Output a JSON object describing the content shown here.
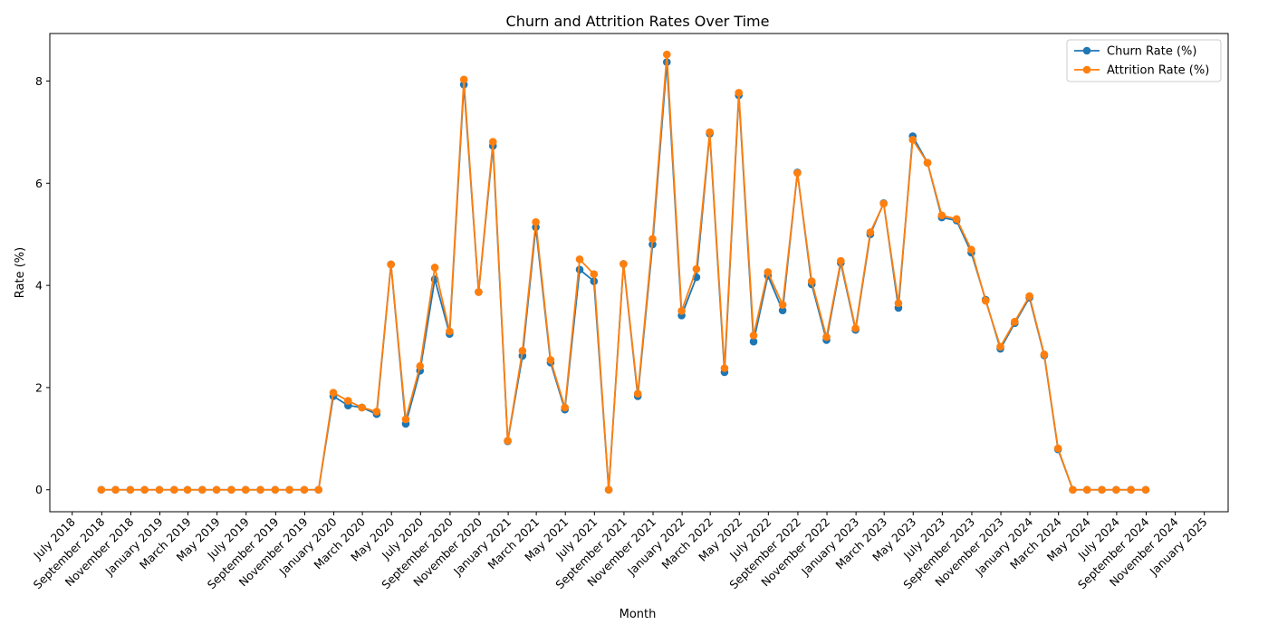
{
  "chart_data": {
    "type": "line",
    "title": "Churn and Attrition Rates Over Time",
    "xlabel": "Month",
    "ylabel": "Rate (%)",
    "legend_position": "top-right",
    "grid": false,
    "xlim": [
      "2018-05-15",
      "2025-02-20"
    ],
    "ylim": [
      -0.43,
      8.93
    ],
    "x_ticks": [
      "2018-07-01",
      "2018-09-01",
      "2018-11-01",
      "2019-01-01",
      "2019-03-01",
      "2019-05-01",
      "2019-07-01",
      "2019-09-01",
      "2019-11-01",
      "2020-01-01",
      "2020-03-01",
      "2020-05-01",
      "2020-07-01",
      "2020-09-01",
      "2020-11-01",
      "2021-01-01",
      "2021-03-01",
      "2021-05-01",
      "2021-07-01",
      "2021-09-01",
      "2021-11-01",
      "2022-01-01",
      "2022-03-01",
      "2022-05-01",
      "2022-07-01",
      "2022-09-01",
      "2022-11-01",
      "2023-01-01",
      "2023-03-01",
      "2023-05-01",
      "2023-07-01",
      "2023-09-01",
      "2023-11-01",
      "2024-01-01",
      "2024-03-01",
      "2024-05-01",
      "2024-07-01",
      "2024-09-01",
      "2024-11-01",
      "2025-01-01"
    ],
    "x_tick_labels": [
      "July 2018",
      "September 2018",
      "November 2018",
      "January 2019",
      "March 2019",
      "May 2019",
      "July 2019",
      "September 2019",
      "November 2019",
      "January 2020",
      "March 2020",
      "May 2020",
      "July 2020",
      "September 2020",
      "November 2020",
      "January 2021",
      "March 2021",
      "May 2021",
      "July 2021",
      "September 2021",
      "November 2021",
      "January 2022",
      "March 2022",
      "May 2022",
      "July 2022",
      "September 2022",
      "November 2022",
      "January 2023",
      "March 2023",
      "May 2023",
      "July 2023",
      "September 2023",
      "November 2023",
      "January 2024",
      "March 2024",
      "May 2024",
      "July 2024",
      "September 2024",
      "November 2024",
      "January 2025"
    ],
    "y_ticks": [
      0,
      2,
      4,
      6,
      8
    ],
    "y_tick_labels": [
      "0",
      "2",
      "4",
      "6",
      "8"
    ],
    "x": [
      "2018-08-31",
      "2018-09-30",
      "2018-10-31",
      "2018-11-30",
      "2018-12-31",
      "2019-01-31",
      "2019-02-28",
      "2019-03-31",
      "2019-04-30",
      "2019-05-31",
      "2019-06-30",
      "2019-07-31",
      "2019-08-31",
      "2019-09-30",
      "2019-10-31",
      "2019-11-30",
      "2019-12-31",
      "2020-01-31",
      "2020-02-29",
      "2020-03-31",
      "2020-04-30",
      "2020-05-31",
      "2020-06-30",
      "2020-07-31",
      "2020-08-31",
      "2020-09-30",
      "2020-10-31",
      "2020-11-30",
      "2020-12-31",
      "2021-01-31",
      "2021-02-28",
      "2021-03-31",
      "2021-04-30",
      "2021-05-31",
      "2021-06-30",
      "2021-07-31",
      "2021-08-31",
      "2021-09-30",
      "2021-10-31",
      "2021-11-30",
      "2021-12-31",
      "2022-01-31",
      "2022-02-28",
      "2022-03-31",
      "2022-04-30",
      "2022-05-31",
      "2022-06-30",
      "2022-07-31",
      "2022-08-31",
      "2022-09-30",
      "2022-10-31",
      "2022-11-30",
      "2022-12-31",
      "2023-01-31",
      "2023-02-28",
      "2023-03-31",
      "2023-04-30",
      "2023-05-31",
      "2023-06-30",
      "2023-07-31",
      "2023-08-31",
      "2023-09-30",
      "2023-10-31",
      "2023-11-30",
      "2023-12-31",
      "2024-01-31",
      "2024-02-29",
      "2024-03-31",
      "2024-04-30",
      "2024-05-31",
      "2024-06-30",
      "2024-07-31",
      "2024-08-31"
    ],
    "series": [
      {
        "name": "Churn Rate (%)",
        "color": "#1f77b4",
        "values": [
          0,
          0,
          0,
          0,
          0,
          0,
          0,
          0,
          0,
          0,
          0,
          0,
          0,
          0,
          0,
          0,
          1.83,
          1.65,
          1.61,
          1.48,
          4.41,
          1.29,
          2.33,
          4.12,
          3.05,
          7.93,
          3.87,
          6.73,
          0.95,
          2.62,
          5.14,
          2.49,
          1.57,
          4.31,
          4.08,
          0,
          4.42,
          1.83,
          4.8,
          8.37,
          3.41,
          4.16,
          6.97,
          2.3,
          7.72,
          2.9,
          4.19,
          3.51,
          6.21,
          4.02,
          2.93,
          4.44,
          3.13,
          5.0,
          5.61,
          3.56,
          6.92,
          6.4,
          5.33,
          5.27,
          4.64,
          3.72,
          2.76,
          3.26,
          3.76,
          2.63,
          0.79,
          0,
          0,
          0,
          0,
          0,
          0
        ]
      },
      {
        "name": "Attrition Rate (%)",
        "color": "#ff7f0e",
        "values": [
          0,
          0,
          0,
          0,
          0,
          0,
          0,
          0,
          0,
          0,
          0,
          0,
          0,
          0,
          0,
          0,
          1.9,
          1.74,
          1.61,
          1.53,
          4.41,
          1.38,
          2.42,
          4.35,
          3.1,
          8.03,
          3.87,
          6.81,
          0.96,
          2.72,
          5.24,
          2.54,
          1.61,
          4.51,
          4.22,
          0,
          4.42,
          1.88,
          4.91,
          8.52,
          3.5,
          4.32,
          7.0,
          2.38,
          7.77,
          3.02,
          4.26,
          3.62,
          6.2,
          4.08,
          2.99,
          4.48,
          3.16,
          5.04,
          5.6,
          3.65,
          6.85,
          6.4,
          5.37,
          5.3,
          4.7,
          3.7,
          2.8,
          3.29,
          3.79,
          2.65,
          0.81,
          0,
          0,
          0,
          0,
          0,
          0
        ]
      }
    ]
  }
}
